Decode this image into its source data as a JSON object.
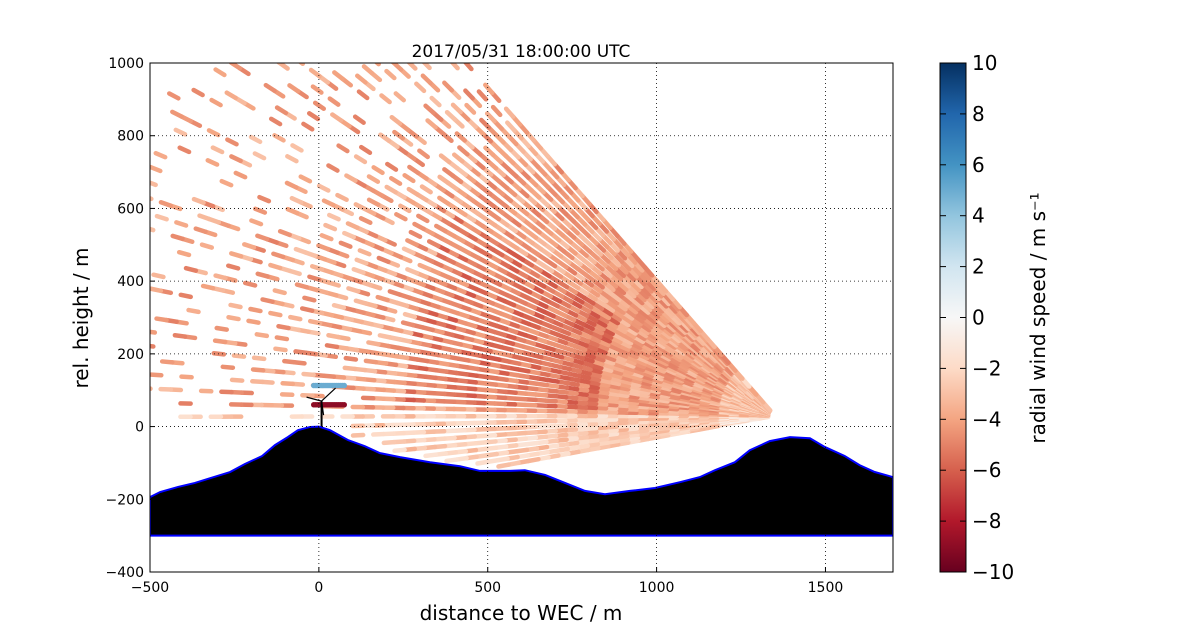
{
  "chart_data": {
    "type": "heatmap",
    "title": "2017/05/31 18:00:00 UTC",
    "xlabel": "distance to WEC / m",
    "ylabel": "rel. height / m",
    "xlim": [
      -500,
      1700
    ],
    "ylim": [
      -400,
      1000
    ],
    "xticks": [
      -500,
      0,
      500,
      1000,
      1500
    ],
    "xtick_labels": [
      "−500",
      "0",
      "500",
      "1000",
      "1500"
    ],
    "yticks": [
      -400,
      -200,
      0,
      200,
      400,
      600,
      800,
      1000
    ],
    "ytick_labels": [
      "−400",
      "−200",
      "0",
      "200",
      "400",
      "600",
      "800",
      "1000"
    ],
    "grid": true,
    "colorbar": {
      "label": "radial wind speed / m s⁻¹",
      "range": [
        -10,
        10
      ],
      "ticks": [
        10,
        8,
        6,
        4,
        2,
        0,
        -2,
        -4,
        -6,
        -8,
        -10
      ],
      "tick_labels": [
        "10",
        "8",
        "6",
        "4",
        "2",
        "0",
        "−2",
        "−4",
        "−6",
        "−8",
        "−10"
      ],
      "colormap": [
        "#67001f",
        "#b2182b",
        "#d6604d",
        "#f4a582",
        "#fddbc7",
        "#f7f7f7",
        "#d1e5f0",
        "#92c5de",
        "#4393c3",
        "#2166ac",
        "#053061"
      ]
    },
    "scan": {
      "origin": [
        1350,
        30
      ],
      "elevation_deg_range": [
        -9.7,
        47.6
      ],
      "elevation_step_deg": 1.2,
      "max_range_m": 2000,
      "typical_speed": -4
    },
    "turbine": {
      "x": 0,
      "hub_height": 70,
      "wake_positive_speed": 5,
      "wake_negative_speed": -9
    },
    "terrain": {
      "bottom": -300,
      "line_color": "#0000ff",
      "x": [
        -500,
        -470,
        -417,
        -367,
        -322,
        -263,
        -219,
        -168,
        -130,
        -92,
        -62,
        -26,
        0,
        33,
        86,
        136,
        181,
        240,
        329,
        418,
        477,
        566,
        610,
        670,
        729,
        788,
        847,
        921,
        995,
        1069,
        1128,
        1173,
        1232,
        1276,
        1335,
        1395,
        1454,
        1498,
        1557,
        1601,
        1646,
        1700
      ],
      "y": [
        -194,
        -180,
        -166,
        -155,
        -142,
        -125,
        -103,
        -81,
        -51,
        -29,
        -10,
        -1,
        0,
        -10,
        -37,
        -54,
        -73,
        -84,
        -98,
        -109,
        -122,
        -122,
        -120,
        -133,
        -155,
        -177,
        -186,
        -177,
        -169,
        -153,
        -139,
        -120,
        -98,
        -65,
        -40,
        -29,
        -32,
        -56,
        -81,
        -106,
        -125,
        -139
      ]
    }
  }
}
